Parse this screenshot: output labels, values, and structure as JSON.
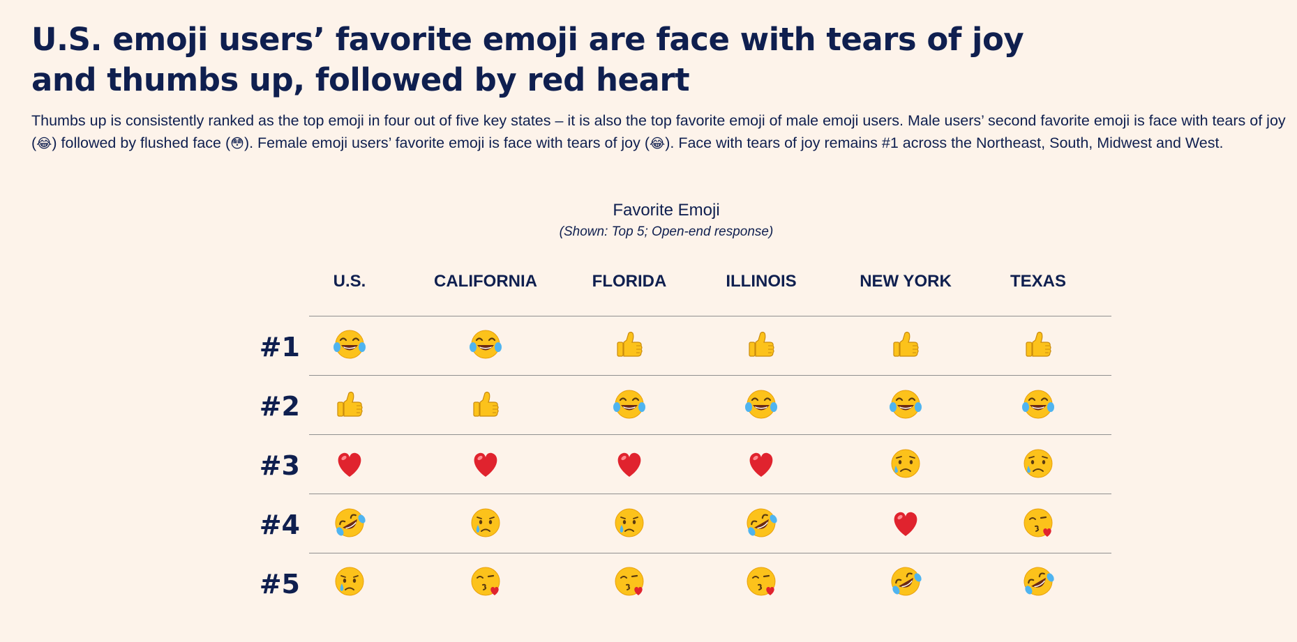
{
  "header": {
    "title": "U.S. emoji users’ favorite emoji are face with tears of joy and thumbs up, followed by red heart",
    "subtitle_parts": {
      "p1": "Thumbs up is consistently ranked as the top emoji in four out of five key states – it is also the top favorite emoji of male emoji users. Male users’ second favorite emoji is face with tears of joy (",
      "e1": "😂",
      "p2": ") followed by flushed face (",
      "e2": "😳",
      "p3": "). Female emoji users’ favorite emoji is face with tears of joy (",
      "e3": "😂",
      "p4": "). Face with tears of joy remains #1 across the Northeast, South, Midwest and West."
    }
  },
  "chart_data": {
    "type": "table",
    "title": "Favorite Emoji",
    "note": "(Shown: Top 5; Open-end response)",
    "columns": [
      "U.S.",
      "CALIFORNIA",
      "FLORIDA",
      "ILLINOIS",
      "NEW YORK",
      "TEXAS"
    ],
    "rows": [
      {
        "rank": "#1",
        "cells": [
          "tears-of-joy",
          "tears-of-joy",
          "thumbs-up",
          "thumbs-up",
          "thumbs-up",
          "thumbs-up"
        ]
      },
      {
        "rank": "#2",
        "cells": [
          "thumbs-up",
          "thumbs-up",
          "tears-of-joy",
          "tears-of-joy",
          "tears-of-joy",
          "tears-of-joy"
        ]
      },
      {
        "rank": "#3",
        "cells": [
          "red-heart",
          "red-heart",
          "red-heart",
          "red-heart",
          "sad-relieved-face",
          "sad-relieved-face"
        ]
      },
      {
        "rank": "#4",
        "cells": [
          "rolling-on-floor-laughing",
          "crying-face",
          "crying-face",
          "rolling-on-floor-laughing",
          "red-heart",
          "face-blowing-kiss"
        ]
      },
      {
        "rank": "#5",
        "cells": [
          "crying-face",
          "face-blowing-kiss",
          "face-blowing-kiss",
          "face-blowing-kiss",
          "rolling-on-floor-laughing",
          "rolling-on-floor-laughing"
        ]
      }
    ]
  },
  "colors": {
    "background": "#fdf3ea",
    "text": "#0f1f4f",
    "rule": "#8f8f8f",
    "emoji_yellow": "#fcc21b",
    "heart_red": "#e0232e",
    "tear_blue": "#4fb4f0"
  }
}
